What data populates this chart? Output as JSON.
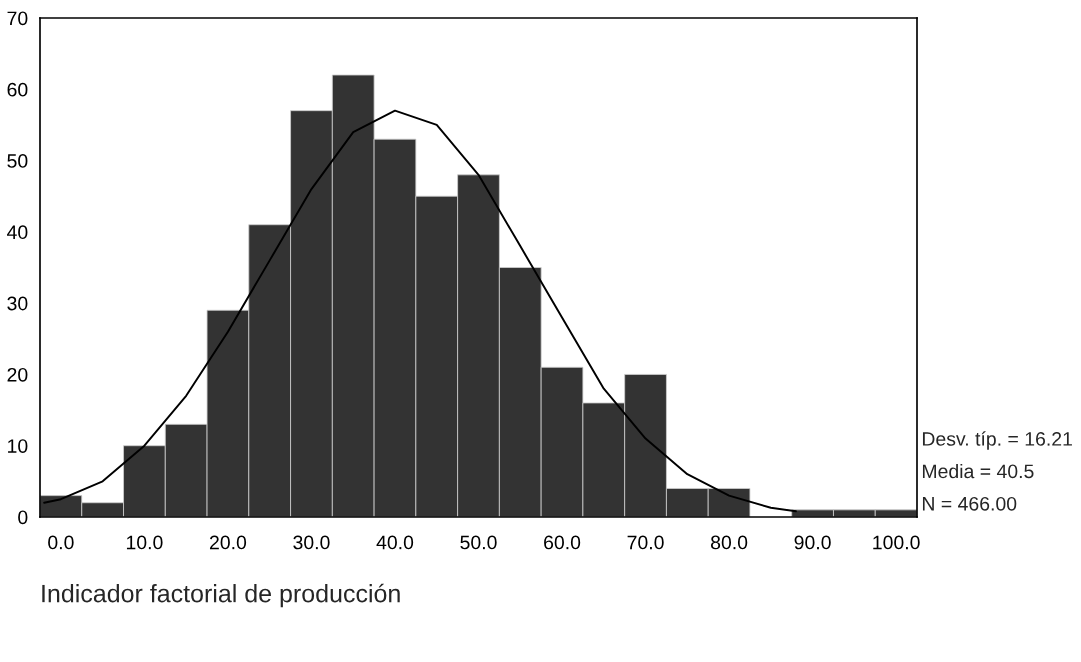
{
  "chart_data": {
    "type": "histogram",
    "xlabel": "Indicador factorial de producción",
    "bins": [
      -2.5,
      2.5,
      7.5,
      12.5,
      17.5,
      22.5,
      27.5,
      32.5,
      37.5,
      42.5,
      47.5,
      52.5,
      57.5,
      62.5,
      67.5,
      72.5,
      77.5,
      82.5,
      87.5,
      92.5,
      97.5,
      102.5
    ],
    "values": [
      3,
      2,
      10,
      13,
      29,
      41,
      57,
      62,
      53,
      45,
      48,
      35,
      21,
      16,
      20,
      4,
      4,
      0,
      1,
      1,
      1
    ],
    "color": "#333333",
    "series": [
      {
        "type": "line",
        "color": "#000000",
        "x": [
          -2,
          0,
          5,
          10,
          15,
          20,
          25,
          30,
          35,
          40,
          45,
          50,
          55,
          60,
          65,
          70,
          75,
          80,
          85,
          88
        ],
        "values": [
          2,
          2.5,
          5,
          10,
          17,
          26,
          36,
          46,
          54,
          57,
          55,
          48,
          38,
          28,
          18,
          11,
          6,
          3,
          1.3,
          0.8
        ]
      }
    ],
    "xlim": [
      -2.5,
      102.5
    ],
    "ylim": [
      0,
      70
    ],
    "xticks": [
      {
        "value": 0,
        "label": "0.0"
      },
      {
        "value": 10,
        "label": "10.0"
      },
      {
        "value": 20,
        "label": "20.0"
      },
      {
        "value": 30,
        "label": "30.0"
      },
      {
        "value": 40,
        "label": "40.0"
      },
      {
        "value": 50,
        "label": "50.0"
      },
      {
        "value": 60,
        "label": "60.0"
      },
      {
        "value": 70,
        "label": "70.0"
      },
      {
        "value": 80,
        "label": "80.0"
      },
      {
        "value": 90,
        "label": "90.0"
      },
      {
        "value": 100,
        "label": "100.0"
      }
    ],
    "yticks": [
      0,
      10,
      20,
      30,
      40,
      50,
      60,
      70
    ],
    "grid": false,
    "annotations": [
      "Desv. típ. = 16.21",
      "Media = 40.5",
      "N = 466.00"
    ]
  }
}
